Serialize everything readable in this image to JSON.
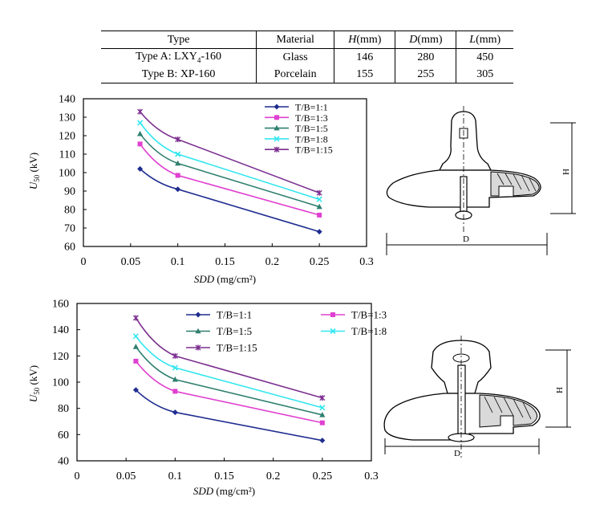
{
  "table": {
    "headers": [
      {
        "text": "Type",
        "ital": false,
        "rest": ""
      },
      {
        "text": "Material",
        "ital": false,
        "rest": ""
      },
      {
        "text": "H",
        "ital": true,
        "rest": "(mm)"
      },
      {
        "text": "D",
        "ital": true,
        "rest": "(mm)"
      },
      {
        "text": "L",
        "ital": true,
        "rest": "(mm)"
      }
    ],
    "rows": [
      {
        "type_prefix": "Type A: LXY",
        "type_sub": "4",
        "type_suffix": "-160",
        "material": "Glass",
        "H": "146",
        "D": "280",
        "L": "450"
      },
      {
        "type_prefix": "Type B: XP-160",
        "type_sub": "",
        "type_suffix": "",
        "material": "Porcelain",
        "H": "155",
        "D": "255",
        "L": "305"
      }
    ]
  },
  "chart_data": [
    {
      "type": "line",
      "x": [
        0.06,
        0.1,
        0.25
      ],
      "xlim": [
        0,
        0.3
      ],
      "ylim": [
        60,
        140
      ],
      "xticks": [
        "0",
        "0.05",
        "0.1",
        "0.15",
        "0.2",
        "0.25",
        "0.3"
      ],
      "yticks": [
        "60",
        "70",
        "80",
        "90",
        "100",
        "110",
        "120",
        "130",
        "140"
      ],
      "xlabel_italic": "SDD",
      "xlabel_unit": " (mg/cm²)",
      "ylabel_italic": "U",
      "ylabel_sub": "50",
      "ylabel_unit": " (kV)",
      "legend_position": "top-right",
      "series": [
        {
          "name": "T/B=1:1",
          "values": [
            102,
            91,
            68
          ],
          "color": "#1f2d8f",
          "marker": "diamond"
        },
        {
          "name": "T/B=1:3",
          "values": [
            115.5,
            98.5,
            77
          ],
          "color": "#e040d0",
          "marker": "square"
        },
        {
          "name": "T/B=1:5",
          "values": [
            121,
            105,
            81.5
          ],
          "color": "#2f7f6f",
          "marker": "triangle"
        },
        {
          "name": "T/B=1:8",
          "values": [
            127,
            110,
            85.5
          ],
          "color": "#33e6f0",
          "marker": "x"
        },
        {
          "name": "T/B=1:15",
          "values": [
            133,
            118,
            89
          ],
          "color": "#7b2f8f",
          "marker": "star"
        }
      ]
    },
    {
      "type": "line",
      "x": [
        0.06,
        0.1,
        0.25
      ],
      "xlim": [
        0,
        0.3
      ],
      "ylim": [
        40,
        160
      ],
      "xticks": [
        "0",
        "0.05",
        "0.1",
        "0.15",
        "0.2",
        "0.25",
        "0.3"
      ],
      "yticks": [
        "40",
        "60",
        "80",
        "100",
        "120",
        "140",
        "160"
      ],
      "xlabel_italic": "SDD",
      "xlabel_unit": " (mg/cm²)",
      "ylabel_italic": "U",
      "ylabel_sub": "50",
      "ylabel_unit": " (kV)",
      "legend_position": "top",
      "series": [
        {
          "name": "T/B=1:1",
          "values": [
            94,
            77,
            55.5
          ],
          "color": "#1f2d8f",
          "marker": "diamond"
        },
        {
          "name": "T/B=1:3",
          "values": [
            116,
            93,
            69
          ],
          "color": "#e040d0",
          "marker": "square"
        },
        {
          "name": "T/B=1:5",
          "values": [
            127,
            102,
            75
          ],
          "color": "#2f7f6f",
          "marker": "triangle"
        },
        {
          "name": "T/B=1:8",
          "values": [
            135,
            111,
            80.5
          ],
          "color": "#33e6f0",
          "marker": "x"
        },
        {
          "name": "T/B=1:15",
          "values": [
            149,
            120,
            88
          ],
          "color": "#7b2f8f",
          "marker": "star"
        }
      ]
    }
  ],
  "diagrams": [
    {
      "height_label": "H",
      "diameter_label": "D"
    },
    {
      "height_label": "H",
      "diameter_label": "D"
    }
  ]
}
